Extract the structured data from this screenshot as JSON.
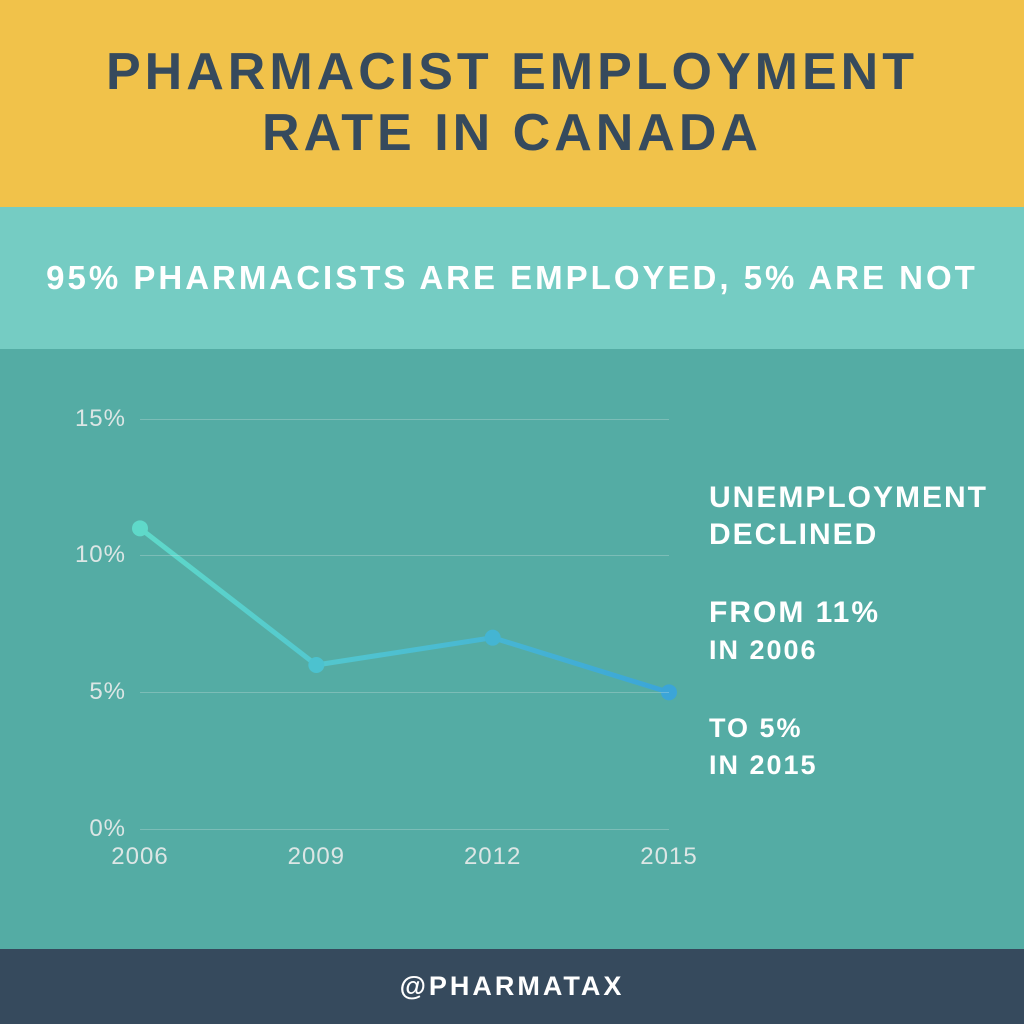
{
  "header": {
    "title_line1": "Pharmacist Employment",
    "title_line2": "Rate in Canada",
    "bg_color": "#f1c24a",
    "title_color": "#364a5d"
  },
  "subheader": {
    "text": "95% PHARMACISTS ARE EMPLOYED, 5% ARE NOT",
    "bg_color": "#75ccc3",
    "text_color": "#ffffff"
  },
  "main": {
    "bg_color": "#54aca4",
    "label_color": "#dce6e5",
    "grid_color": "#dce6e5"
  },
  "chart": {
    "type": "line",
    "x_values": [
      2006,
      2009,
      2012,
      2015
    ],
    "y_values": [
      11,
      6,
      7,
      5
    ],
    "ylim": [
      0,
      15
    ],
    "yticks": [
      0,
      5,
      10,
      15
    ],
    "ytick_labels": [
      "0%",
      "5%",
      "10%",
      "15%"
    ],
    "xtick_labels": [
      "2006",
      "2009",
      "2012",
      "2015"
    ],
    "line_width": 5,
    "marker_radius": 8,
    "gradient_start": "#5fd9c9",
    "gradient_end": "#3ba5d8",
    "marker_colors": [
      "#5fd9c9",
      "#4cc2cf",
      "#44b5d3",
      "#3ba5d8"
    ]
  },
  "right_panel": {
    "block1_line1": "Unemployment",
    "block1_line2": "Declined",
    "block2_line1": "From 11%",
    "block2_line2": "in 2006",
    "block3_line1": "to 5%",
    "block3_line2": "in 2015"
  },
  "footer": {
    "text": "@PHARMATAX",
    "bg_color": "#364a5d"
  }
}
